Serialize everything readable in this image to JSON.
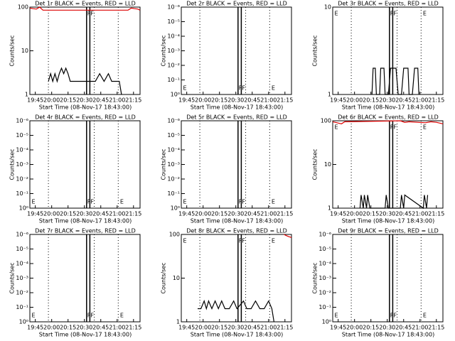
{
  "chart_data": [
    {
      "type": "line",
      "title": "Det 1r BLACK = Events, RED = LLD",
      "xlabel": "Start Time (08-Nov-17 18:43:00)",
      "ylabel": "Counts/sec",
      "xlim": [
        "19:40",
        "21:21"
      ],
      "xticks": [
        "19:45",
        "20:00",
        "20:15",
        "20:30",
        "20:45",
        "21:00",
        "21:15"
      ],
      "ylim": [
        1,
        100
      ],
      "yticks": [
        1,
        10,
        100
      ],
      "log_y": true,
      "vlines": [
        {
          "x": "19:57",
          "style": "dotted"
        },
        {
          "x": "20:32",
          "style": "solid"
        },
        {
          "x": "20:35",
          "style": "solid"
        },
        {
          "x": "20:39",
          "style": "dotted"
        },
        {
          "x": "21:01",
          "style": "dotted"
        }
      ],
      "annotations": [
        {
          "text": "F",
          "x": "20:32",
          "position": "top"
        },
        {
          "text": "F",
          "x": "20:35",
          "position": "top"
        }
      ],
      "series": [
        {
          "color": "#000000",
          "x": [
            "19:57",
            "19:59",
            "20:01",
            "20:03",
            "20:05",
            "20:07",
            "20:09",
            "20:11",
            "20:13",
            "20:15",
            "20:17",
            "20:20",
            "20:25",
            "20:30",
            "20:36",
            "20:40",
            "20:44",
            "20:48",
            "20:52",
            "20:55",
            "20:57",
            "20:59",
            "21:02",
            "21:04"
          ],
          "values": [
            2,
            3,
            2,
            3,
            2,
            3,
            4,
            3,
            4,
            3,
            2,
            2,
            2,
            2,
            2,
            2,
            3,
            2,
            3,
            2,
            2,
            2,
            2,
            1
          ]
        },
        {
          "color": "#dd0000",
          "x": [
            "19:40",
            "19:43",
            "19:46",
            "19:49",
            "19:52",
            "21:10",
            "21:13",
            "21:16",
            "21:19",
            "21:21"
          ],
          "values": [
            95,
            92,
            90,
            100,
            85,
            85,
            95,
            92,
            90,
            85
          ]
        }
      ]
    },
    {
      "type": "line",
      "title": "Det 2r BLACK = Events, RED = LLD",
      "xlabel": "Start Time (08-Nov-17 18:43:00)",
      "ylabel": "Counts/sec",
      "xlim": [
        "19:40",
        "21:21"
      ],
      "xticks": [
        "19:45",
        "20:00",
        "20:15",
        "20:30",
        "20:45",
        "21:00",
        "21:15"
      ],
      "ylim": [
        1,
        1e-06
      ],
      "yticks": [
        {
          "value": 1,
          "label": "10⁰"
        },
        {
          "value": 0.1,
          "label": "10⁻¹"
        },
        {
          "value": 0.01,
          "label": "10⁻²"
        },
        {
          "value": 0.001,
          "label": "10⁻³"
        },
        {
          "value": 0.0001,
          "label": "10⁻⁴"
        },
        {
          "value": 1e-05,
          "label": "10⁻⁵"
        },
        {
          "value": 1e-06,
          "label": "10⁻⁶"
        }
      ],
      "log_y": true,
      "vlines": [
        {
          "x": "19:57",
          "style": "dotted"
        },
        {
          "x": "20:32",
          "style": "solid"
        },
        {
          "x": "20:35",
          "style": "solid"
        },
        {
          "x": "20:39",
          "style": "dotted"
        },
        {
          "x": "21:01",
          "style": "dotted"
        }
      ],
      "annotations": [
        {
          "text": "E",
          "x": "19:41",
          "position": "bottom"
        },
        {
          "text": "F",
          "x": "20:32",
          "position": "bottom"
        },
        {
          "text": "F",
          "x": "20:35",
          "position": "bottom"
        },
        {
          "text": "E",
          "x": "21:02",
          "position": "bottom"
        }
      ],
      "series": []
    },
    {
      "type": "line",
      "title": "Det 3r BLACK = Events, RED = LLD",
      "xlabel": "Start Time (08-Nov-17 18:43:00)",
      "ylabel": "Counts/sec",
      "xlim": [
        "19:40",
        "21:21"
      ],
      "xticks": [
        "19:45",
        "20:00",
        "20:15",
        "20:30",
        "20:45",
        "21:00",
        "21:15"
      ],
      "ylim": [
        1,
        10
      ],
      "yticks": [
        1,
        10
      ],
      "log_y": true,
      "vlines": [
        {
          "x": "19:57",
          "style": "dotted"
        },
        {
          "x": "20:32",
          "style": "solid"
        },
        {
          "x": "20:35",
          "style": "solid"
        },
        {
          "x": "20:39",
          "style": "dotted"
        },
        {
          "x": "21:01",
          "style": "dotted"
        }
      ],
      "annotations": [
        {
          "text": "E",
          "x": "19:41",
          "position": "top"
        },
        {
          "text": "F",
          "x": "20:32",
          "position": "top"
        },
        {
          "text": "F",
          "x": "20:35",
          "position": "top"
        },
        {
          "text": "E",
          "x": "21:02",
          "position": "top"
        }
      ],
      "series": [
        {
          "color": "#000000",
          "x": [
            "20:16",
            "20:17",
            "20:19",
            "20:20",
            "20:23",
            "20:24",
            "20:27",
            "20:28",
            "20:31",
            "20:33",
            "20:38",
            "20:40",
            "20:43",
            "20:45",
            "20:49",
            "20:50",
            "20:53",
            "20:55",
            "20:58",
            "20:59"
          ],
          "values": [
            1,
            2,
            2,
            1,
            1,
            2,
            2,
            1,
            1,
            2,
            2,
            1,
            1,
            2,
            2,
            1,
            1,
            2,
            2,
            1
          ]
        }
      ]
    },
    {
      "type": "line",
      "title": "Det 4r BLACK = Events, RED = LLD",
      "xlabel": "Start Time (08-Nov-17 18:43:00)",
      "ylabel": "Counts/sec",
      "xlim": [
        "19:40",
        "21:21"
      ],
      "xticks": [
        "19:45",
        "20:00",
        "20:15",
        "20:30",
        "20:45",
        "21:00",
        "21:15"
      ],
      "ylim": [
        1,
        1e-06
      ],
      "yticks": [
        {
          "value": 1,
          "label": "10⁰"
        },
        {
          "value": 0.1,
          "label": "10⁻¹"
        },
        {
          "value": 0.01,
          "label": "10⁻²"
        },
        {
          "value": 0.001,
          "label": "10⁻³"
        },
        {
          "value": 0.0001,
          "label": "10⁻⁴"
        },
        {
          "value": 1e-05,
          "label": "10⁻⁵"
        },
        {
          "value": 1e-06,
          "label": "10⁻⁶"
        }
      ],
      "log_y": true,
      "vlines": [
        {
          "x": "19:57",
          "style": "dotted"
        },
        {
          "x": "20:32",
          "style": "solid"
        },
        {
          "x": "20:35",
          "style": "solid"
        },
        {
          "x": "20:39",
          "style": "dotted"
        },
        {
          "x": "21:01",
          "style": "dotted"
        }
      ],
      "annotations": [
        {
          "text": "E",
          "x": "19:41",
          "position": "bottom"
        },
        {
          "text": "F",
          "x": "20:32",
          "position": "bottom"
        },
        {
          "text": "F",
          "x": "20:35",
          "position": "bottom"
        },
        {
          "text": "E",
          "x": "21:02",
          "position": "bottom"
        }
      ],
      "series": []
    },
    {
      "type": "line",
      "title": "Det 5r BLACK = Events, RED = LLD",
      "xlabel": "Start Time (08-Nov-17 18:43:00)",
      "ylabel": "Counts/sec",
      "xlim": [
        "19:40",
        "21:21"
      ],
      "xticks": [
        "19:45",
        "20:00",
        "20:15",
        "20:30",
        "20:45",
        "21:00",
        "21:15"
      ],
      "ylim": [
        1,
        1e-06
      ],
      "yticks": [
        {
          "value": 1,
          "label": "10⁰"
        },
        {
          "value": 0.1,
          "label": "10⁻¹"
        },
        {
          "value": 0.01,
          "label": "10⁻²"
        },
        {
          "value": 0.001,
          "label": "10⁻³"
        },
        {
          "value": 0.0001,
          "label": "10⁻⁴"
        },
        {
          "value": 1e-05,
          "label": "10⁻⁵"
        },
        {
          "value": 1e-06,
          "label": "10⁻⁶"
        }
      ],
      "log_y": true,
      "vlines": [
        {
          "x": "19:57",
          "style": "dotted"
        },
        {
          "x": "20:32",
          "style": "solid"
        },
        {
          "x": "20:35",
          "style": "solid"
        },
        {
          "x": "20:39",
          "style": "dotted"
        },
        {
          "x": "21:01",
          "style": "dotted"
        }
      ],
      "annotations": [
        {
          "text": "E",
          "x": "19:41",
          "position": "bottom"
        },
        {
          "text": "F",
          "x": "20:32",
          "position": "bottom"
        },
        {
          "text": "F",
          "x": "20:35",
          "position": "bottom"
        },
        {
          "text": "E",
          "x": "21:02",
          "position": "bottom"
        }
      ],
      "series": []
    },
    {
      "type": "line",
      "title": "Det 6r BLACK = Events, RED = LLD",
      "xlabel": "Start Time (08-Nov-17 18:43:00)",
      "ylabel": "Counts/sec",
      "xlim": [
        "19:40",
        "21:21"
      ],
      "xticks": [
        "19:45",
        "20:00",
        "20:15",
        "20:30",
        "20:45",
        "21:00",
        "21:15"
      ],
      "ylim": [
        1,
        100
      ],
      "yticks": [
        1,
        10,
        100
      ],
      "log_y": true,
      "vlines": [
        {
          "x": "19:57",
          "style": "dotted"
        },
        {
          "x": "20:32",
          "style": "solid"
        },
        {
          "x": "20:35",
          "style": "solid"
        },
        {
          "x": "20:39",
          "style": "dotted"
        },
        {
          "x": "21:01",
          "style": "dotted"
        }
      ],
      "annotations": [
        {
          "text": "E",
          "x": "19:41",
          "position": "top"
        },
        {
          "text": "F",
          "x": "20:32",
          "position": "top"
        },
        {
          "text": "F",
          "x": "20:35",
          "position": "top"
        },
        {
          "text": "E",
          "x": "21:02",
          "position": "top"
        }
      ],
      "series": [
        {
          "color": "#000000",
          "x": [
            "20:05",
            "20:06",
            "20:08",
            "20:09",
            "20:11",
            "20:12",
            "20:14",
            "20:28",
            "20:29",
            "20:31",
            "20:42",
            "20:43",
            "20:45",
            "20:46",
            "21:03",
            "21:04",
            "21:06",
            "21:07"
          ],
          "values": [
            1,
            2,
            1,
            2,
            1,
            2,
            1,
            1,
            2,
            1,
            1,
            2,
            1,
            2,
            1,
            2,
            1,
            2
          ]
        },
        {
          "color": "#dd0000",
          "x": [
            "19:40",
            "19:44",
            "19:48",
            "19:51",
            "20:42",
            "20:46",
            "20:50",
            "21:05",
            "21:10",
            "21:15",
            "21:21"
          ],
          "values": [
            95,
            90,
            85,
            95,
            100,
            92,
            95,
            90,
            95,
            92,
            85
          ]
        }
      ]
    },
    {
      "type": "line",
      "title": "Det 7r BLACK = Events, RED = LLD",
      "xlabel": "Start Time (08-Nov-17 18:43:00)",
      "ylabel": "Counts/sec",
      "xlim": [
        "19:40",
        "21:21"
      ],
      "xticks": [
        "19:45",
        "20:00",
        "20:15",
        "20:30",
        "20:45",
        "21:00",
        "21:15"
      ],
      "ylim": [
        1,
        1e-06
      ],
      "yticks": [
        {
          "value": 1,
          "label": "10⁰"
        },
        {
          "value": 0.1,
          "label": "10⁻¹"
        },
        {
          "value": 0.01,
          "label": "10⁻²"
        },
        {
          "value": 0.001,
          "label": "10⁻³"
        },
        {
          "value": 0.0001,
          "label": "10⁻⁴"
        },
        {
          "value": 1e-05,
          "label": "10⁻⁵"
        },
        {
          "value": 1e-06,
          "label": "10⁻⁶"
        }
      ],
      "log_y": true,
      "vlines": [
        {
          "x": "19:57",
          "style": "dotted"
        },
        {
          "x": "20:32",
          "style": "solid"
        },
        {
          "x": "20:35",
          "style": "solid"
        },
        {
          "x": "20:39",
          "style": "dotted"
        },
        {
          "x": "21:01",
          "style": "dotted"
        }
      ],
      "annotations": [
        {
          "text": "E",
          "x": "19:41",
          "position": "bottom"
        },
        {
          "text": "F",
          "x": "20:32",
          "position": "bottom"
        },
        {
          "text": "F",
          "x": "20:35",
          "position": "bottom"
        },
        {
          "text": "E",
          "x": "21:02",
          "position": "bottom"
        }
      ],
      "series": []
    },
    {
      "type": "line",
      "title": "Det 8r BLACK = Events, RED = LLD",
      "xlabel": "Start Time (08-Nov-17 18:43:00)",
      "ylabel": "Counts/sec",
      "xlim": [
        "19:40",
        "21:21"
      ],
      "xticks": [
        "19:45",
        "20:00",
        "20:15",
        "20:30",
        "20:45",
        "21:00",
        "21:15"
      ],
      "ylim": [
        1,
        100
      ],
      "yticks": [
        1,
        10,
        100
      ],
      "log_y": true,
      "vlines": [
        {
          "x": "19:57",
          "style": "dotted"
        },
        {
          "x": "20:32",
          "style": "solid"
        },
        {
          "x": "20:35",
          "style": "solid"
        },
        {
          "x": "20:39",
          "style": "dotted"
        },
        {
          "x": "21:01",
          "style": "dotted"
        }
      ],
      "annotations": [
        {
          "text": "E",
          "x": "19:41",
          "position": "top"
        },
        {
          "text": "F",
          "x": "20:32",
          "position": "top"
        },
        {
          "text": "F",
          "x": "20:35",
          "position": "top"
        },
        {
          "text": "E",
          "x": "21:02",
          "position": "top"
        }
      ],
      "series": [
        {
          "color": "#000000",
          "x": [
            "19:55",
            "19:58",
            "20:01",
            "20:03",
            "20:05",
            "20:08",
            "20:11",
            "20:14",
            "20:17",
            "20:20",
            "20:24",
            "20:28",
            "20:31",
            "20:37",
            "20:40",
            "20:44",
            "20:48",
            "20:52",
            "20:56",
            "21:00",
            "21:03",
            "21:05"
          ],
          "values": [
            2,
            2,
            3,
            2,
            3,
            2,
            3,
            2,
            3,
            2,
            2,
            3,
            2,
            3,
            2,
            2,
            3,
            2,
            2,
            3,
            2,
            1
          ]
        },
        {
          "color": "#dd0000",
          "x": [
            "21:14",
            "21:16",
            "21:18",
            "21:21"
          ],
          "values": [
            100,
            95,
            90,
            85
          ]
        }
      ]
    },
    {
      "type": "line",
      "title": "Det 9r BLACK = Events, RED = LLD",
      "xlabel": "Start Time (08-Nov-17 18:43:00)",
      "ylabel": "Counts/sec",
      "xlim": [
        "19:40",
        "21:21"
      ],
      "xticks": [
        "19:45",
        "20:00",
        "20:15",
        "20:30",
        "20:45",
        "21:00",
        "21:15"
      ],
      "ylim": [
        1,
        1e-06
      ],
      "yticks": [
        {
          "value": 1,
          "label": "10⁰"
        },
        {
          "value": 0.1,
          "label": "10⁻¹"
        },
        {
          "value": 0.01,
          "label": "10⁻²"
        },
        {
          "value": 0.001,
          "label": "10⁻³"
        },
        {
          "value": 0.0001,
          "label": "10⁻⁴"
        },
        {
          "value": 1e-05,
          "label": "10⁻⁵"
        },
        {
          "value": 1e-06,
          "label": "10⁻⁶"
        }
      ],
      "log_y": true,
      "vlines": [
        {
          "x": "19:57",
          "style": "dotted"
        },
        {
          "x": "20:32",
          "style": "solid"
        },
        {
          "x": "20:35",
          "style": "solid"
        },
        {
          "x": "20:39",
          "style": "dotted"
        },
        {
          "x": "21:01",
          "style": "dotted"
        }
      ],
      "annotations": [
        {
          "text": "E",
          "x": "19:41",
          "position": "bottom"
        },
        {
          "text": "F",
          "x": "20:32",
          "position": "bottom"
        },
        {
          "text": "F",
          "x": "20:35",
          "position": "bottom"
        },
        {
          "text": "E",
          "x": "21:02",
          "position": "bottom"
        }
      ],
      "series": []
    }
  ]
}
